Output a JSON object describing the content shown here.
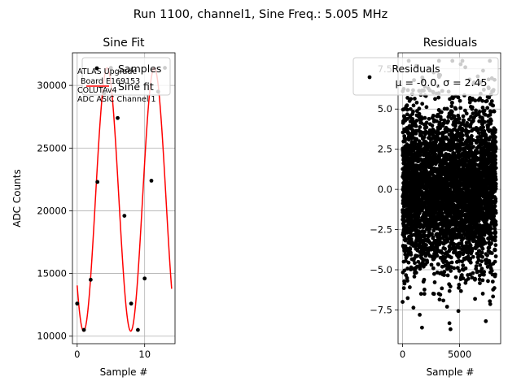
{
  "figure": {
    "suptitle": "Run 1100, channel1, Sine Freq.: 5.005 MHz"
  },
  "colors": {
    "points": "#000000",
    "fit_line": "#ff0000",
    "grid": "#b0b0b0",
    "legend_border": "#cccccc"
  },
  "chart_data": [
    {
      "type": "scatter",
      "title": "Sine Fit",
      "xlabel": "Sample #",
      "ylabel": "ADC Counts",
      "xlim": [
        -0.7,
        14.5
      ],
      "ylim": [
        9400,
        32600
      ],
      "x_ticks": [
        0,
        10
      ],
      "y_ticks": [
        10000,
        15000,
        20000,
        25000,
        30000
      ],
      "grid": true,
      "legend_position": "top-right",
      "legend": [
        "Samples",
        "Sine fit"
      ],
      "annotation": [
        "ATLAS Upgrade",
        "Board E169153",
        "COLUTAv4",
        "ADC ASIC Channel 1"
      ],
      "series": [
        {
          "name": "Samples",
          "kind": "points",
          "x": [
            0,
            1,
            2,
            3,
            4,
            5,
            6,
            7,
            8,
            9,
            10,
            11,
            12,
            13
          ],
          "y": [
            12600,
            10500,
            14500,
            22300,
            29400,
            31400,
            27400,
            19600,
            12600,
            10500,
            14600,
            22400,
            29500,
            31400
          ]
        },
        {
          "name": "Sine fit",
          "kind": "line",
          "model": "y = 20900 + 10500*sin(0.9 * (x - 2.7))",
          "x_range": [
            0,
            14
          ]
        }
      ]
    },
    {
      "type": "scatter",
      "title": "Residuals",
      "xlabel": "Sample #",
      "ylabel": "",
      "xlim": [
        -400,
        8600
      ],
      "ylim": [
        -9.6,
        8.5
      ],
      "x_ticks": [
        0,
        5000
      ],
      "y_ticks": [
        -7.5,
        -5.0,
        -2.5,
        0.0,
        2.5,
        5.0,
        7.5
      ],
      "y_tick_labels": [
        "−7.5",
        "−5.0",
        "−2.5",
        "0.0",
        "2.5",
        "5.0",
        "7.5"
      ],
      "grid": true,
      "legend_position": "top-right",
      "legend": [
        "Residuals",
        "μ = -0.0, σ = 2.45"
      ],
      "series": [
        {
          "name": "Residuals",
          "kind": "points",
          "n_points": 8192,
          "x_range": [
            0,
            8191
          ],
          "mean": -0.0,
          "std": 2.45,
          "extreme_points": [
            {
              "x": 7650,
              "y": 8.0
            },
            {
              "x": 5500,
              "y": 7.6
            },
            {
              "x": 3200,
              "y": 7.0
            },
            {
              "x": 1000,
              "y": 6.8
            },
            {
              "x": 4200,
              "y": -8.7
            },
            {
              "x": 1700,
              "y": -8.6
            },
            {
              "x": 7300,
              "y": -8.2
            },
            {
              "x": 1500,
              "y": -7.8
            },
            {
              "x": 0,
              "y": -7.0
            },
            {
              "x": 3900,
              "y": -7.3
            }
          ]
        }
      ]
    }
  ]
}
